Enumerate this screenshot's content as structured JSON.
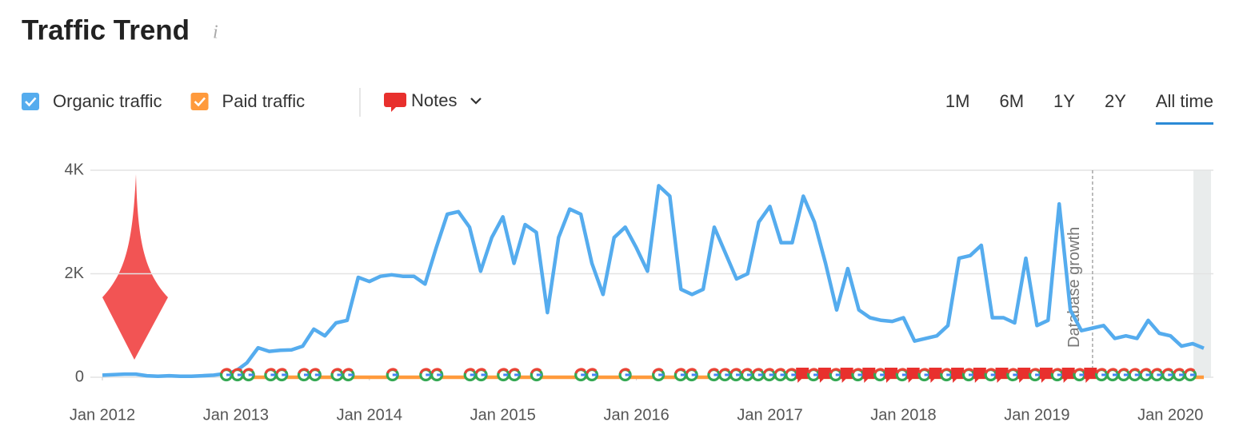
{
  "header": {
    "title": "Traffic Trend"
  },
  "controls": {
    "notes": "Notes",
    "ranges": [
      "1M",
      "6M",
      "1Y",
      "2Y",
      "All time"
    ],
    "active_range": 4
  },
  "chart_data": {
    "type": "line",
    "x": [
      "2012-01",
      "2012-02",
      "2012-03",
      "2012-04",
      "2012-05",
      "2012-06",
      "2012-07",
      "2012-08",
      "2012-09",
      "2012-10",
      "2012-11",
      "2012-12",
      "2013-01",
      "2013-02",
      "2013-03",
      "2013-04",
      "2013-05",
      "2013-06",
      "2013-07",
      "2013-08",
      "2013-09",
      "2013-10",
      "2013-11",
      "2013-12",
      "2014-01",
      "2014-02",
      "2014-03",
      "2014-04",
      "2014-05",
      "2014-06",
      "2014-07",
      "2014-08",
      "2014-09",
      "2014-10",
      "2014-11",
      "2014-12",
      "2015-01",
      "2015-02",
      "2015-03",
      "2015-04",
      "2015-05",
      "2015-06",
      "2015-07",
      "2015-08",
      "2015-09",
      "2015-10",
      "2015-11",
      "2015-12",
      "2016-01",
      "2016-02",
      "2016-03",
      "2016-04",
      "2016-05",
      "2016-06",
      "2016-07",
      "2016-08",
      "2016-09",
      "2016-10",
      "2016-11",
      "2016-12",
      "2017-01",
      "2017-02",
      "2017-03",
      "2017-04",
      "2017-05",
      "2017-06",
      "2017-07",
      "2017-08",
      "2017-09",
      "2017-10",
      "2017-11",
      "2017-12",
      "2018-01",
      "2018-02",
      "2018-03",
      "2018-04",
      "2018-05",
      "2018-06",
      "2018-07",
      "2018-08",
      "2018-09",
      "2018-10",
      "2018-11",
      "2018-12",
      "2019-01",
      "2019-02",
      "2019-03",
      "2019-04",
      "2019-05",
      "2019-06",
      "2019-07",
      "2019-08",
      "2019-09",
      "2019-10",
      "2019-11",
      "2019-12",
      "2020-01",
      "2020-02",
      "2020-03",
      "2020-04"
    ],
    "series": [
      {
        "name": "Organic traffic",
        "color": "#55acee",
        "values": [
          40,
          50,
          60,
          60,
          30,
          20,
          30,
          20,
          20,
          30,
          40,
          70,
          120,
          280,
          570,
          500,
          520,
          530,
          600,
          930,
          800,
          1050,
          1100,
          1930,
          1850,
          1950,
          1980,
          1950,
          1950,
          1800,
          2500,
          3150,
          3200,
          2900,
          2050,
          2700,
          3100,
          2200,
          2950,
          2800,
          1250,
          2700,
          3250,
          3150,
          2200,
          1600,
          2700,
          2900,
          2500,
          2050,
          3700,
          3500,
          1700,
          1600,
          1700,
          2900,
          2400,
          1900,
          2000,
          3000,
          3300,
          2600,
          2600,
          3500,
          3000,
          2200,
          1300,
          2100,
          1300,
          1150,
          1100,
          1080,
          1150,
          700,
          750,
          800,
          1000,
          2300,
          2350,
          2550,
          1150,
          1150,
          1050,
          2300,
          1000,
          1100,
          3350,
          1300,
          900,
          950,
          1000,
          750,
          800,
          750,
          1100,
          850,
          800,
          600,
          650,
          560
        ]
      },
      {
        "name": "Paid traffic",
        "color": "#ff9a3c",
        "values": [
          null,
          null,
          null,
          null,
          null,
          null,
          null,
          null,
          null,
          null,
          null,
          null,
          0,
          0,
          0,
          0,
          0,
          0,
          0,
          0,
          0,
          0,
          0,
          0,
          0,
          0,
          0,
          0,
          0,
          0,
          0,
          0,
          0,
          0,
          0,
          0,
          0,
          0,
          0,
          0,
          0,
          0,
          0,
          0,
          0,
          0,
          0,
          0,
          0,
          0,
          0,
          0,
          0,
          0,
          0,
          0,
          0,
          0,
          0,
          0,
          0,
          0,
          0,
          0,
          0,
          0,
          0,
          0,
          0,
          0,
          0,
          0,
          0,
          0,
          0,
          0,
          0,
          0,
          0,
          0,
          0,
          0,
          0,
          0,
          0,
          0,
          0,
          0,
          0,
          0,
          0,
          0,
          0,
          0,
          0,
          0,
          0,
          0,
          0,
          0
        ]
      }
    ],
    "xlim": [
      "2012-01",
      "2020-04"
    ],
    "xticks": [
      {
        "value": "2012-01",
        "label": "Jan 2012"
      },
      {
        "value": "2013-01",
        "label": "Jan 2013"
      },
      {
        "value": "2014-01",
        "label": "Jan 2014"
      },
      {
        "value": "2015-01",
        "label": "Jan 2015"
      },
      {
        "value": "2016-01",
        "label": "Jan 2016"
      },
      {
        "value": "2017-01",
        "label": "Jan 2017"
      },
      {
        "value": "2018-01",
        "label": "Jan 2018"
      },
      {
        "value": "2019-01",
        "label": "Jan 2019"
      },
      {
        "value": "2020-01",
        "label": "Jan 2020"
      }
    ],
    "ylim": [
      0,
      4000
    ],
    "yticks": [
      0,
      {
        "value": 2000,
        "label": "2K"
      },
      {
        "value": 4000,
        "label": "4K"
      }
    ],
    "grid": true,
    "annotations": [
      {
        "x": "2019-06",
        "text": "Database growth"
      }
    ]
  }
}
